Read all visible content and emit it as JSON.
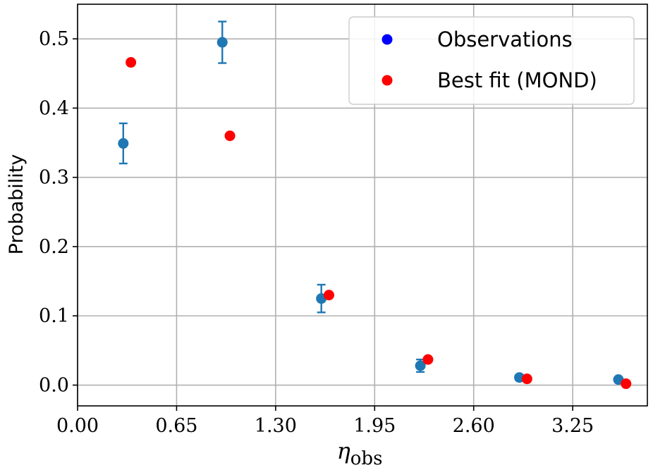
{
  "chart_data": {
    "type": "scatter",
    "title": "",
    "xlabel": "η",
    "xlabel_subscript": "obs",
    "ylabel": "Probability",
    "xlim": [
      0.0,
      3.74
    ],
    "ylim": [
      -0.03,
      0.55
    ],
    "xticks": [
      0.0,
      0.65,
      1.3,
      1.95,
      2.6,
      3.25
    ],
    "xtick_labels": [
      "0.00",
      "0.65",
      "1.30",
      "1.95",
      "2.60",
      "3.25"
    ],
    "yticks": [
      0.0,
      0.1,
      0.2,
      0.3,
      0.4,
      0.5
    ],
    "ytick_labels": [
      "0.0",
      "0.1",
      "0.2",
      "0.3",
      "0.4",
      "0.5"
    ],
    "grid": true,
    "legend_position": "top-right",
    "series": [
      {
        "name": "Observations",
        "color": "#1f77b4",
        "legend_color": "#0000ff",
        "points": [
          {
            "x": 0.3,
            "y": 0.349,
            "err": 0.029
          },
          {
            "x": 0.95,
            "y": 0.495,
            "err": 0.03
          },
          {
            "x": 1.6,
            "y": 0.125,
            "err": 0.02
          },
          {
            "x": 2.25,
            "y": 0.028,
            "err": 0.009
          },
          {
            "x": 2.9,
            "y": 0.011,
            "err": 0.004
          },
          {
            "x": 3.55,
            "y": 0.008,
            "err": 0.003
          }
        ]
      },
      {
        "name": "Best fit (MOND)",
        "color": "#ff0000",
        "legend_color": "#ff0000",
        "points": [
          {
            "x": 0.35,
            "y": 0.466
          },
          {
            "x": 1.0,
            "y": 0.36
          },
          {
            "x": 1.65,
            "y": 0.13
          },
          {
            "x": 2.3,
            "y": 0.037
          },
          {
            "x": 2.95,
            "y": 0.009
          },
          {
            "x": 3.6,
            "y": 0.002
          }
        ]
      }
    ]
  }
}
